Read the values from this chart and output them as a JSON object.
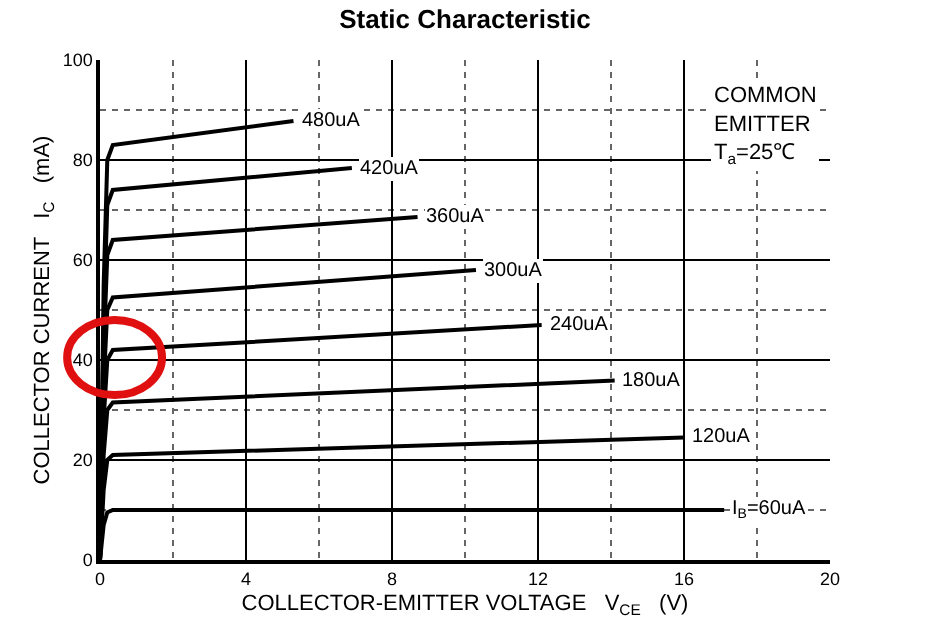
{
  "chart_data": {
    "type": "line",
    "title": "Static Characteristic",
    "xlabel": "COLLECTOR-EMITTER VOLTAGE   V$_{CE}$   (V)",
    "ylabel": "COLLECTOR CURRENT   I$_{C}$   (mA)",
    "series": [
      {
        "name": "480uA",
        "color": "#000000",
        "x": [
          0,
          0.1,
          0.2,
          0.35,
          5.3
        ],
        "values": [
          0,
          55,
          80,
          83,
          87.8
        ]
      },
      {
        "name": "420uA",
        "color": "#000000",
        "x": [
          0,
          0.1,
          0.2,
          0.35,
          6.9
        ],
        "values": [
          0,
          48,
          71,
          74,
          78.4
        ]
      },
      {
        "name": "360uA",
        "color": "#000000",
        "x": [
          0,
          0.1,
          0.2,
          0.35,
          8.7
        ],
        "values": [
          0,
          42,
          61,
          64,
          68.6
        ]
      },
      {
        "name": "300uA",
        "color": "#000000",
        "x": [
          0,
          0.1,
          0.2,
          0.35,
          10.3
        ],
        "values": [
          0,
          35,
          50,
          52.5,
          58
        ]
      },
      {
        "name": "240uA",
        "color": "#000000",
        "x": [
          0,
          0.1,
          0.2,
          0.35,
          12.1
        ],
        "values": [
          0,
          28,
          40,
          42,
          47
        ]
      },
      {
        "name": "180uA",
        "color": "#000000",
        "x": [
          0,
          0.1,
          0.2,
          0.35,
          14.1
        ],
        "values": [
          0,
          21,
          30,
          31.5,
          35.9
        ]
      },
      {
        "name": "120uA",
        "color": "#000000",
        "x": [
          0,
          0.1,
          0.2,
          0.35,
          16.0
        ],
        "values": [
          0,
          14,
          20,
          21,
          24.5
        ]
      },
      {
        "name": "I$_{B}$=60uA",
        "color": "#000000",
        "x": [
          0,
          0.1,
          0.2,
          0.35,
          17.1
        ],
        "values": [
          0,
          7,
          9.5,
          10,
          10
        ]
      }
    ],
    "annotations": [
      "COMMON\nEMITTER\nT$_{a}$=25℃"
    ],
    "xlim": [
      0,
      20
    ],
    "xticks": [
      0,
      {
        "value": 2,
        "label": null
      },
      4,
      {
        "value": 6,
        "label": null
      },
      8,
      {
        "value": 10,
        "label": null
      },
      12,
      {
        "value": 14,
        "label": null
      },
      16,
      {
        "value": 18,
        "label": null
      },
      20
    ],
    "ylim": [
      0,
      100
    ],
    "yticks": [
      0,
      {
        "value": 10,
        "label": null
      },
      20,
      {
        "value": 30,
        "label": null
      },
      40,
      {
        "value": 50,
        "label": null
      },
      60,
      {
        "value": 70,
        "label": null
      },
      80,
      {
        "value": 90,
        "label": null
      },
      100
    ],
    "grid": true,
    "legend": false,
    "marker": "none",
    "line_style": "solid"
  }
}
